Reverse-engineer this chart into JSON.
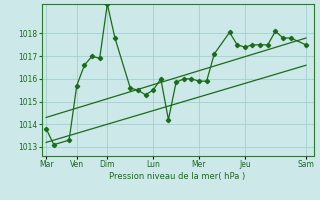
{
  "background_color": "#cce8e8",
  "grid_color": "#99cccc",
  "line_color": "#1a6b1a",
  "spine_color": "#2d7a2d",
  "x_ticks_labels": [
    "Mar",
    "Ven",
    "Dim",
    "Lun",
    "Mer",
    "Jeu",
    "Sam"
  ],
  "x_ticks_pos": [
    0,
    2,
    4,
    7,
    10,
    13,
    17
  ],
  "xlabel": "Pression niveau de la mer( hPa )",
  "ylim": [
    1012.6,
    1019.3
  ],
  "yticks": [
    1013,
    1014,
    1015,
    1016,
    1017,
    1018
  ],
  "series1_x": [
    0,
    0.5,
    1.5,
    2,
    2.5,
    3,
    3.5,
    4,
    4.5,
    5.5,
    6,
    6.5,
    7,
    7.5,
    8,
    8.5,
    9,
    9.5,
    10,
    10.5,
    11,
    12,
    12.5,
    13,
    13.5,
    14,
    14.5,
    15,
    15.5,
    16,
    17
  ],
  "series1_y": [
    1013.8,
    1013.1,
    1013.3,
    1015.7,
    1016.6,
    1017.0,
    1016.9,
    1019.3,
    1017.8,
    1015.6,
    1015.5,
    1015.3,
    1015.5,
    1016.0,
    1014.2,
    1015.85,
    1016.0,
    1016.0,
    1015.9,
    1015.9,
    1017.1,
    1018.05,
    1017.5,
    1017.4,
    1017.5,
    1017.5,
    1017.5,
    1018.1,
    1017.8,
    1017.8,
    1017.5
  ],
  "trend1_x": [
    0,
    17
  ],
  "trend1_y": [
    1013.2,
    1016.6
  ],
  "trend2_x": [
    0,
    17
  ],
  "trend2_y": [
    1014.3,
    1017.8
  ]
}
